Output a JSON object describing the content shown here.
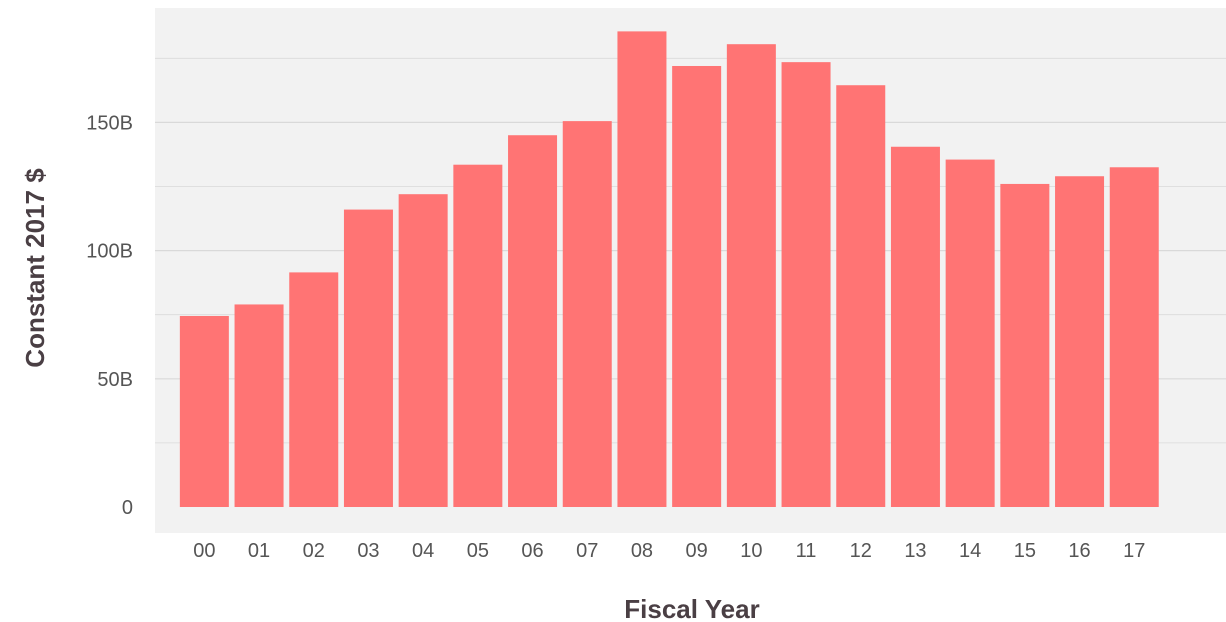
{
  "chart_data": {
    "type": "bar",
    "title": "",
    "xlabel": "Fiscal Year",
    "ylabel": "Constant 2017 $",
    "categories": [
      "00",
      "01",
      "02",
      "03",
      "04",
      "05",
      "06",
      "07",
      "08",
      "09",
      "10",
      "11",
      "12",
      "13",
      "14",
      "15",
      "16",
      "17"
    ],
    "values": [
      74.5,
      79.0,
      91.5,
      116.0,
      122.0,
      133.5,
      145.0,
      150.5,
      185.5,
      172.0,
      180.5,
      173.5,
      164.5,
      140.5,
      135.5,
      126.0,
      129.0,
      132.5
    ],
    "value_unit": "billions",
    "ylim": [
      -10,
      195
    ],
    "yticks": [
      {
        "value": 0,
        "label": "0"
      },
      {
        "value": 50,
        "label": "50B"
      },
      {
        "value": 100,
        "label": "100B"
      },
      {
        "value": 150,
        "label": "150B"
      }
    ],
    "minor_gridlines": [
      25,
      75,
      125,
      175
    ],
    "grid": true,
    "legend": "none",
    "colors": {
      "bar": "#ff7474",
      "panel_background": "#f2f2f2",
      "gridline": "#d9d9d9",
      "tick_text": "#555555",
      "axis_title": "#4a3f44"
    }
  }
}
